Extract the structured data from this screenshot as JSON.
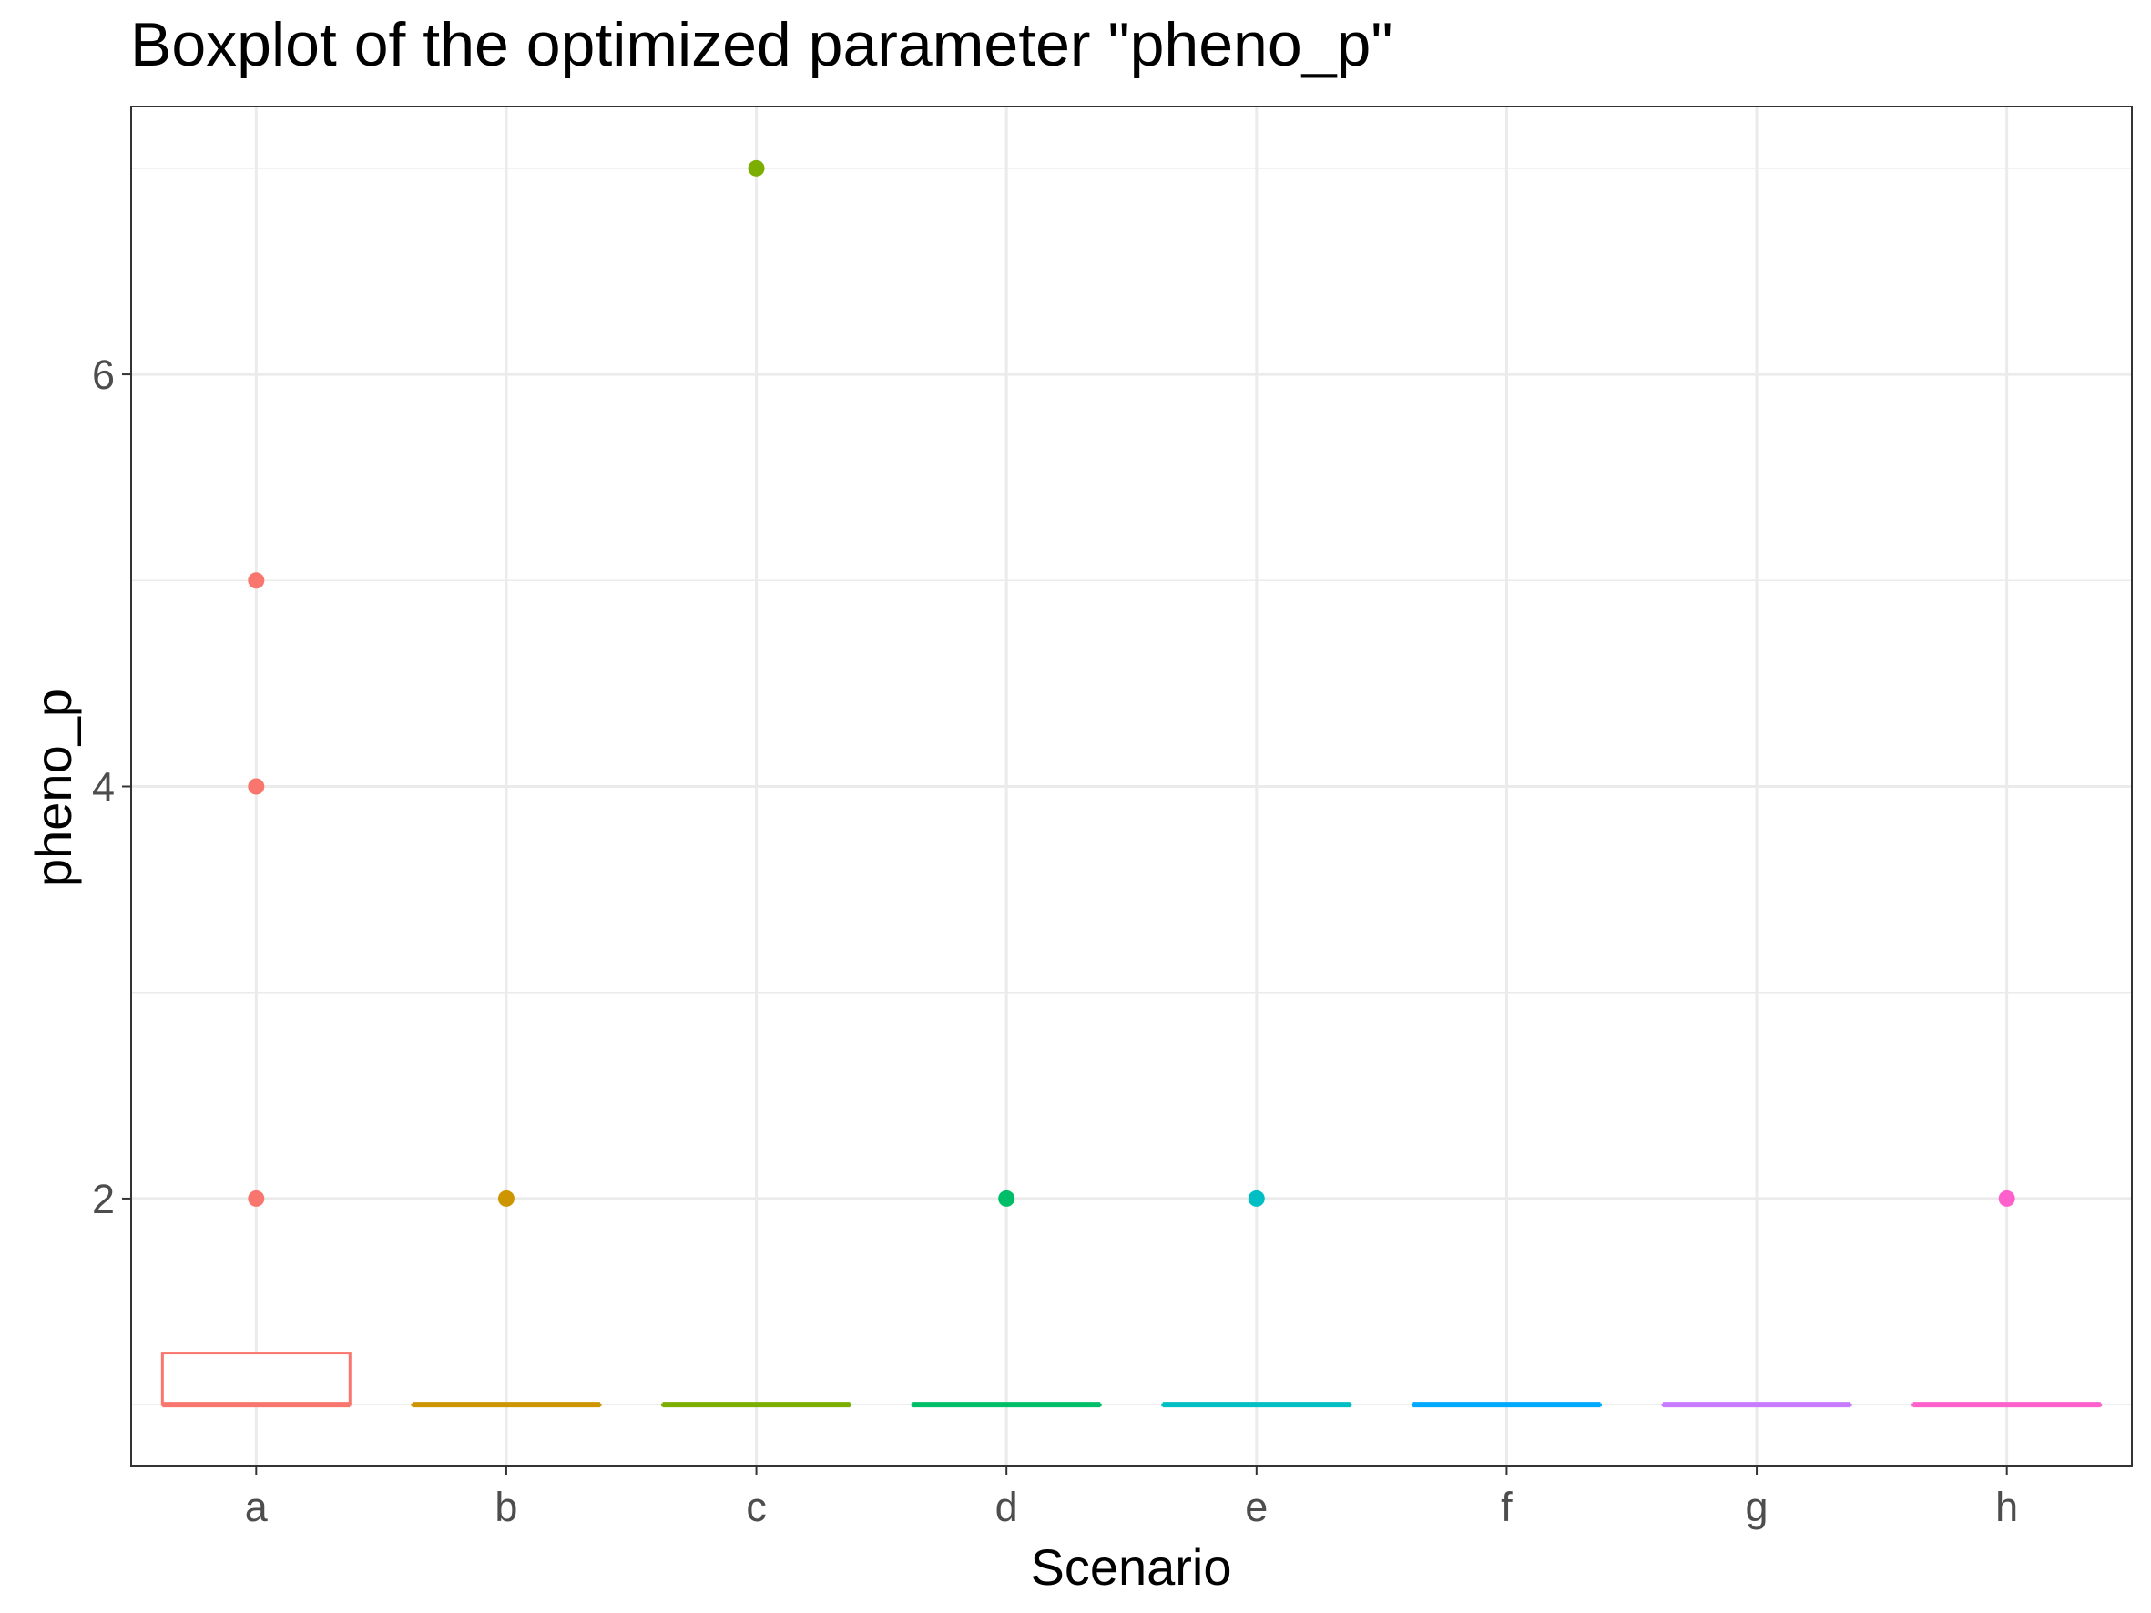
{
  "chart_data": {
    "type": "boxplot",
    "title": "Boxplot of the optimized parameter \"pheno_p\"",
    "xlabel": "Scenario",
    "ylabel": "pheno_p",
    "categories": [
      "a",
      "b",
      "c",
      "d",
      "e",
      "f",
      "g",
      "h"
    ],
    "ylim": [
      0.7,
      7.3
    ],
    "y_ticks": [
      2,
      4,
      6
    ],
    "grid": true,
    "legend": "none",
    "boxes": [
      {
        "category": "a",
        "color": "#F8766D",
        "q1": 1,
        "median": 1,
        "q3": 1.25,
        "whisker_low": 1,
        "whisker_high": 1.25,
        "outliers": [
          2,
          4,
          5
        ]
      },
      {
        "category": "b",
        "color": "#CD9600",
        "q1": 1,
        "median": 1,
        "q3": 1,
        "whisker_low": 1,
        "whisker_high": 1,
        "outliers": [
          2
        ]
      },
      {
        "category": "c",
        "color": "#7CAE00",
        "q1": 1,
        "median": 1,
        "q3": 1,
        "whisker_low": 1,
        "whisker_high": 1,
        "outliers": [
          7
        ]
      },
      {
        "category": "d",
        "color": "#00BE67",
        "q1": 1,
        "median": 1,
        "q3": 1,
        "whisker_low": 1,
        "whisker_high": 1,
        "outliers": [
          2
        ]
      },
      {
        "category": "e",
        "color": "#00BFC4",
        "q1": 1,
        "median": 1,
        "q3": 1,
        "whisker_low": 1,
        "whisker_high": 1,
        "outliers": [
          2
        ]
      },
      {
        "category": "f",
        "color": "#00A9FF",
        "q1": 1,
        "median": 1,
        "q3": 1,
        "whisker_low": 1,
        "whisker_high": 1,
        "outliers": []
      },
      {
        "category": "g",
        "color": "#C77CFF",
        "q1": 1,
        "median": 1,
        "q3": 1,
        "whisker_low": 1,
        "whisker_high": 1,
        "outliers": []
      },
      {
        "category": "h",
        "color": "#FF61CC",
        "q1": 1,
        "median": 1,
        "q3": 1,
        "whisker_low": 1,
        "whisker_high": 1,
        "outliers": [
          2
        ]
      }
    ]
  }
}
